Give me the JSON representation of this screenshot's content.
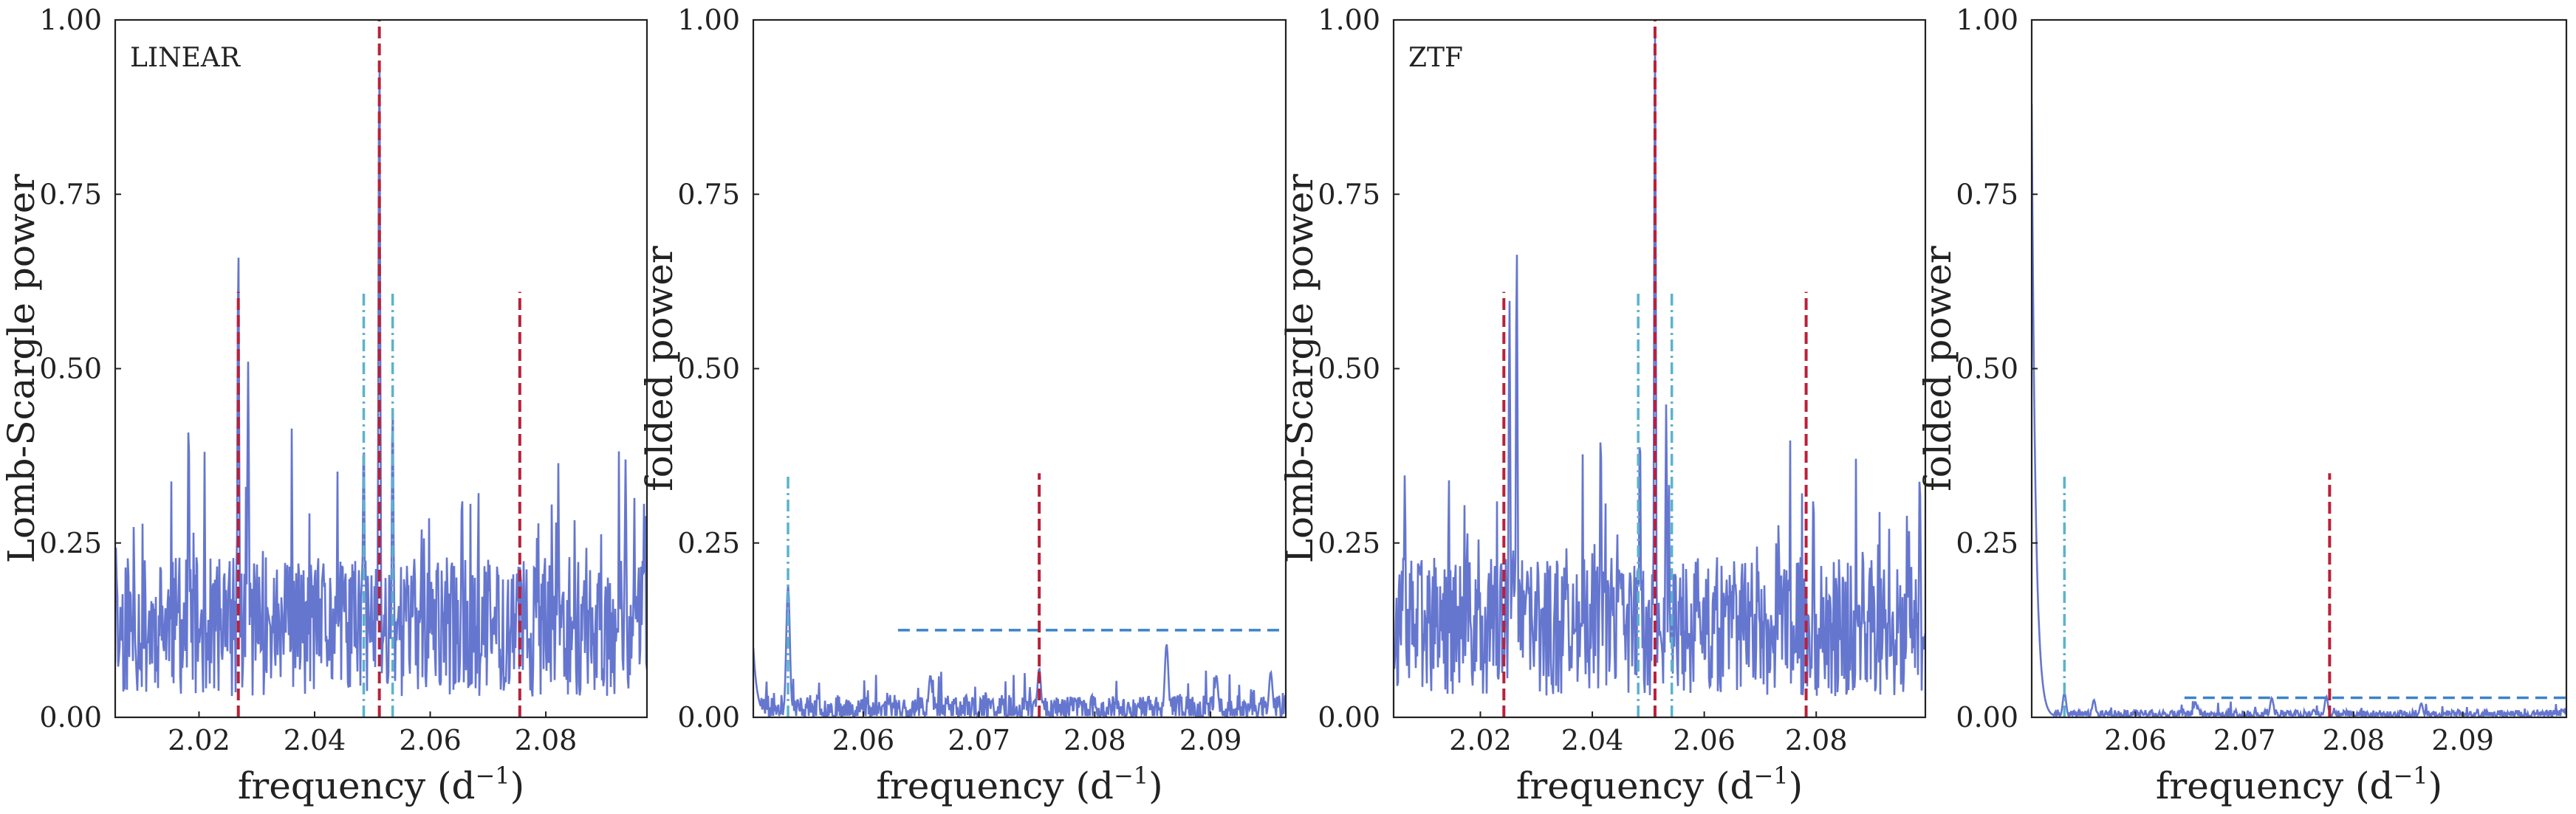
{
  "colors": {
    "periodogram": "#6576cf",
    "red_marker": "#b8213a",
    "cyan_marker": "#5ab3cd",
    "threshold": "#3a82cc",
    "axes": "#222222"
  },
  "chart_data": [
    {
      "type": "line",
      "panel_label": "LINEAR",
      "xlabel": "frequency (d",
      "xlabel_sup": "−1",
      "xlabel_close": ")",
      "ylabel": "Lomb-Scargle power",
      "xlim": [
        2.0055,
        2.0975
      ],
      "ylim": [
        0,
        1.0
      ],
      "xticks": [
        2.02,
        2.04,
        2.06,
        2.08
      ],
      "xtick_labels": [
        "2.02",
        "2.04",
        "2.06",
        "2.08"
      ],
      "yticks": [
        0,
        0.25,
        0.5,
        0.75,
        1.0
      ],
      "ytick_labels": [
        "0.00",
        "0.25",
        "0.50",
        "0.75",
        "1.00"
      ],
      "seed": 11,
      "noise": {
        "base": 0.13,
        "amp": 0.2
      },
      "peaks": [
        [
          2.0268,
          0.68
        ],
        [
          2.0512,
          0.97
        ],
        [
          2.0285,
          0.51
        ],
        [
          2.0535,
          0.46
        ],
        [
          2.0485,
          0.41
        ],
        [
          2.0182,
          0.43
        ],
        [
          2.0938,
          0.37
        ],
        [
          2.0655,
          0.33
        ]
      ],
      "red_lines": [
        {
          "x": 2.0268,
          "y": 0.61
        },
        {
          "x": 2.0512,
          "y": 1.0
        },
        {
          "x": 2.0755,
          "y": 0.61
        }
      ],
      "cyan_lines": [
        {
          "x": 2.0485,
          "y": 0.61
        },
        {
          "x": 2.0535,
          "y": 0.61
        }
      ],
      "threshold": null
    },
    {
      "type": "line",
      "panel_label": "",
      "xlabel": "frequency (d",
      "xlabel_sup": "−1",
      "xlabel_close": ")",
      "ylabel": "folded power",
      "xlim": [
        2.0505,
        2.0965
      ],
      "ylim": [
        0,
        1.0
      ],
      "xticks": [
        2.06,
        2.07,
        2.08,
        2.09
      ],
      "xtick_labels": [
        "2.06",
        "2.07",
        "2.08",
        "2.09"
      ],
      "yticks": [
        0,
        0.25,
        0.5,
        0.75,
        1.0
      ],
      "ytick_labels": [
        "0.00",
        "0.25",
        "0.50",
        "0.75",
        "1.00"
      ],
      "seed": 23,
      "noise": {
        "base": 0.012,
        "amp": 0.04
      },
      "peaks": [
        [
          2.0535,
          0.19
        ],
        [
          2.0752,
          0.07
        ],
        [
          2.0862,
          0.105
        ],
        [
          2.0658,
          0.06
        ],
        [
          2.0905,
          0.06
        ],
        [
          2.0952,
          0.065
        ]
      ],
      "start_spike": {
        "y": 0.1
      },
      "red_lines": [
        {
          "x": 2.0752,
          "y": 0.35
        }
      ],
      "cyan_lines": [
        {
          "x": 2.0535,
          "y": 0.35
        }
      ],
      "threshold": {
        "x_start": 2.063,
        "y": 0.125
      }
    },
    {
      "type": "line",
      "panel_label": "ZTF",
      "xlabel": "frequency (d",
      "xlabel_sup": "−1",
      "xlabel_close": ")",
      "ylabel": "Lomb-Scargle power",
      "xlim": [
        2.0045,
        2.0995
      ],
      "ylim": [
        0,
        1.0
      ],
      "xticks": [
        2.02,
        2.04,
        2.06,
        2.08
      ],
      "xtick_labels": [
        "2.02",
        "2.04",
        "2.06",
        "2.08"
      ],
      "yticks": [
        0,
        0.25,
        0.5,
        0.75,
        1.0
      ],
      "ytick_labels": [
        "0.00",
        "0.25",
        "0.50",
        "0.75",
        "1.00"
      ],
      "seed": 37,
      "noise": {
        "base": 0.13,
        "amp": 0.2
      },
      "peaks": [
        [
          2.0512,
          0.98
        ],
        [
          2.0265,
          0.68
        ],
        [
          2.0252,
          0.6
        ],
        [
          2.0485,
          0.42
        ],
        [
          2.0532,
          0.45
        ],
        [
          2.0065,
          0.35
        ],
        [
          2.0415,
          0.42
        ],
        [
          2.0985,
          0.36
        ],
        [
          2.0795,
          0.33
        ]
      ],
      "red_lines": [
        {
          "x": 2.0242,
          "y": 0.61
        },
        {
          "x": 2.0512,
          "y": 1.0
        },
        {
          "x": 2.0782,
          "y": 0.61
        }
      ],
      "cyan_lines": [
        {
          "x": 2.0482,
          "y": 0.61
        },
        {
          "x": 2.0542,
          "y": 0.61
        }
      ],
      "threshold": null
    },
    {
      "type": "line",
      "panel_label": "",
      "xlabel": "frequency (d",
      "xlabel_sup": "−1",
      "xlabel_close": ")",
      "ylabel": "folded power",
      "xlim": [
        2.0505,
        2.0995
      ],
      "ylim": [
        0,
        1.0
      ],
      "xticks": [
        2.06,
        2.07,
        2.08,
        2.09
      ],
      "xtick_labels": [
        "2.06",
        "2.07",
        "2.08",
        "2.09"
      ],
      "yticks": [
        0,
        0.25,
        0.5,
        0.75,
        1.0
      ],
      "ytick_labels": [
        "0.00",
        "0.25",
        "0.50",
        "0.75",
        "1.00"
      ],
      "seed": 53,
      "noise": {
        "base": 0.004,
        "amp": 0.014
      },
      "peaks": [
        [
          2.0535,
          0.035
        ],
        [
          2.0562,
          0.025
        ],
        [
          2.0775,
          0.03
        ],
        [
          2.0725,
          0.028
        ],
        [
          2.0655,
          0.022
        ],
        [
          2.0862,
          0.02
        ]
      ],
      "start_spike": {
        "y": 0.88
      },
      "red_lines": [
        {
          "x": 2.0778,
          "y": 0.35
        }
      ],
      "cyan_lines": [
        {
          "x": 2.0535,
          "y": 0.35
        }
      ],
      "threshold": {
        "x_start": 2.0645,
        "y": 0.028
      }
    }
  ]
}
